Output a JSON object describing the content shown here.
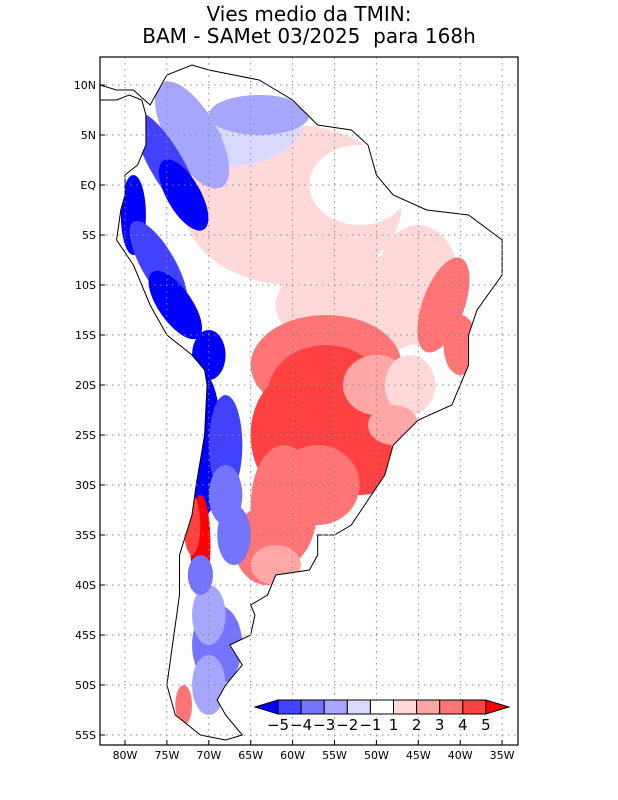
{
  "title": {
    "line1": "Vies medio da TMIN:",
    "line2": "BAM - SAMet 03/2025  para 168h"
  },
  "map": {
    "lon_range": [
      -83,
      -33
    ],
    "lat_range": [
      -56,
      12.8
    ],
    "lat_ticks": [
      "10N",
      "5N",
      "EQ",
      "5S",
      "10S",
      "15S",
      "20S",
      "25S",
      "30S",
      "35S",
      "40S",
      "45S",
      "50S",
      "55S"
    ],
    "lat_values": [
      10,
      5,
      0,
      -5,
      -10,
      -15,
      -20,
      -25,
      -30,
      -35,
      -40,
      -45,
      -50,
      -55
    ],
    "lon_ticks": [
      "80W",
      "75W",
      "70W",
      "65W",
      "60W",
      "55W",
      "50W",
      "45W",
      "40W",
      "35W"
    ],
    "lon_values": [
      -80,
      -75,
      -70,
      -65,
      -60,
      -55,
      -50,
      -45,
      -40,
      -35
    ]
  },
  "colorbar": {
    "labels": [
      "-5",
      "-4",
      "-3",
      "-2",
      "-1",
      "1",
      "2",
      "3",
      "4",
      "5"
    ],
    "colors": [
      "#0000ff",
      "#4141ff",
      "#7474ff",
      "#a6a6ff",
      "#d9d9ff",
      "#ffffff",
      "#ffd9d9",
      "#ffa6a6",
      "#ff7474",
      "#ff4141",
      "#ff0000"
    ]
  }
}
